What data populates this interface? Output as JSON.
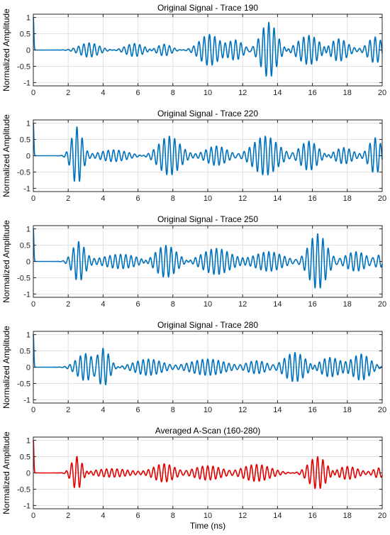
{
  "chart_data": [
    {
      "type": "line",
      "title": "Original Signal - Trace 190",
      "xlabel": "",
      "ylabel": "Normalized Amplitude",
      "xlim": [
        0,
        20
      ],
      "ylim": [
        -1.1,
        1.1
      ],
      "xticks": [
        0,
        2,
        4,
        6,
        8,
        10,
        12,
        14,
        16,
        18,
        20
      ],
      "yticks": [
        -1,
        -0.5,
        0,
        0.5,
        1
      ],
      "grid": true,
      "color": "#0072BD",
      "packets": [
        {
          "t": 0.0,
          "a": 1.0,
          "s": 0.03,
          "f": 0.0
        },
        {
          "t": 3.2,
          "a": 0.22,
          "s": 0.55,
          "f": 3.3
        },
        {
          "t": 5.8,
          "a": 0.2,
          "s": 0.5,
          "f": 3.3
        },
        {
          "t": 7.5,
          "a": 0.18,
          "s": 0.4,
          "f": 3.3
        },
        {
          "t": 10.1,
          "a": 0.48,
          "s": 0.55,
          "f": 3.3
        },
        {
          "t": 11.6,
          "a": 0.3,
          "s": 0.4,
          "f": 3.3
        },
        {
          "t": 13.5,
          "a": 0.85,
          "s": 0.45,
          "f": 3.3
        },
        {
          "t": 15.8,
          "a": 0.45,
          "s": 0.6,
          "f": 3.3
        },
        {
          "t": 17.5,
          "a": 0.35,
          "s": 0.5,
          "f": 3.3
        },
        {
          "t": 19.6,
          "a": 0.4,
          "s": 0.4,
          "f": 3.3
        }
      ]
    },
    {
      "type": "line",
      "title": "Original Signal - Trace 220",
      "xlabel": "",
      "ylabel": "Normalized Amplitude",
      "xlim": [
        0,
        20
      ],
      "ylim": [
        -1.1,
        1.1
      ],
      "xticks": [
        0,
        2,
        4,
        6,
        8,
        10,
        12,
        14,
        16,
        18,
        20
      ],
      "yticks": [
        -1,
        -0.5,
        0,
        0.5,
        1
      ],
      "grid": true,
      "color": "#0072BD",
      "packets": [
        {
          "t": 0.0,
          "a": 1.0,
          "s": 0.03,
          "f": 0.0
        },
        {
          "t": 2.5,
          "a": 0.88,
          "s": 0.3,
          "f": 3.3
        },
        {
          "t": 4.6,
          "a": 0.18,
          "s": 0.8,
          "f": 3.3
        },
        {
          "t": 7.8,
          "a": 0.6,
          "s": 0.6,
          "f": 3.3
        },
        {
          "t": 10.5,
          "a": 0.3,
          "s": 0.6,
          "f": 3.3
        },
        {
          "t": 13.3,
          "a": 0.6,
          "s": 0.7,
          "f": 3.3
        },
        {
          "t": 15.8,
          "a": 0.45,
          "s": 0.5,
          "f": 3.3
        },
        {
          "t": 17.8,
          "a": 0.25,
          "s": 0.5,
          "f": 3.3
        },
        {
          "t": 19.6,
          "a": 0.55,
          "s": 0.35,
          "f": 3.3
        }
      ]
    },
    {
      "type": "line",
      "title": "Original Signal - Trace 250",
      "xlabel": "",
      "ylabel": "Normalized Amplitude",
      "xlim": [
        0,
        20
      ],
      "ylim": [
        -1.1,
        1.1
      ],
      "xticks": [
        0,
        2,
        4,
        6,
        8,
        10,
        12,
        14,
        16,
        18,
        20
      ],
      "yticks": [
        -1,
        -0.5,
        0,
        0.5,
        1
      ],
      "grid": true,
      "color": "#0072BD",
      "packets": [
        {
          "t": 0.0,
          "a": 1.0,
          "s": 0.03,
          "f": 0.0
        },
        {
          "t": 2.6,
          "a": 0.6,
          "s": 0.35,
          "f": 3.3
        },
        {
          "t": 5.0,
          "a": 0.22,
          "s": 1.0,
          "f": 3.3
        },
        {
          "t": 7.6,
          "a": 0.5,
          "s": 0.6,
          "f": 3.3
        },
        {
          "t": 10.5,
          "a": 0.4,
          "s": 0.8,
          "f": 3.3
        },
        {
          "t": 13.5,
          "a": 0.3,
          "s": 0.8,
          "f": 3.3
        },
        {
          "t": 16.3,
          "a": 0.85,
          "s": 0.5,
          "f": 3.3
        },
        {
          "t": 18.5,
          "a": 0.3,
          "s": 0.6,
          "f": 3.3
        },
        {
          "t": 19.8,
          "a": 0.2,
          "s": 0.3,
          "f": 3.3
        }
      ]
    },
    {
      "type": "line",
      "title": "Original Signal - Trace 280",
      "xlabel": "",
      "ylabel": "Normalized Amplitude",
      "xlim": [
        0,
        20
      ],
      "ylim": [
        -1.1,
        1.1
      ],
      "xticks": [
        0,
        2,
        4,
        6,
        8,
        10,
        12,
        14,
        16,
        18,
        20
      ],
      "yticks": [
        -1,
        -0.5,
        0,
        0.5,
        1
      ],
      "grid": true,
      "color": "#0072BD",
      "packets": [
        {
          "t": 0.0,
          "a": 1.0,
          "s": 0.03,
          "f": 0.0
        },
        {
          "t": 3.0,
          "a": 0.42,
          "s": 0.5,
          "f": 3.3
        },
        {
          "t": 4.0,
          "a": 0.6,
          "s": 0.35,
          "f": 3.3
        },
        {
          "t": 6.6,
          "a": 0.25,
          "s": 0.8,
          "f": 3.3
        },
        {
          "t": 10.0,
          "a": 0.25,
          "s": 1.0,
          "f": 3.3
        },
        {
          "t": 12.8,
          "a": 0.2,
          "s": 0.6,
          "f": 3.3
        },
        {
          "t": 15.0,
          "a": 0.45,
          "s": 0.6,
          "f": 3.3
        },
        {
          "t": 17.0,
          "a": 0.3,
          "s": 0.6,
          "f": 3.3
        },
        {
          "t": 18.8,
          "a": 0.4,
          "s": 0.5,
          "f": 3.3
        }
      ]
    },
    {
      "type": "line",
      "title": "Averaged A-Scan (160-280)",
      "xlabel": "Time (ns)",
      "ylabel": "Normalized Amplitude",
      "xlim": [
        0,
        20
      ],
      "ylim": [
        -1.1,
        1.1
      ],
      "xticks": [
        0,
        2,
        4,
        6,
        8,
        10,
        12,
        14,
        16,
        18,
        20
      ],
      "yticks": [
        -1,
        -0.5,
        0,
        0.5,
        1
      ],
      "grid": true,
      "color": "#E30000",
      "packets": [
        {
          "t": 0.0,
          "a": 1.0,
          "s": 0.03,
          "f": 0.0
        },
        {
          "t": 2.5,
          "a": 0.52,
          "s": 0.3,
          "f": 3.3
        },
        {
          "t": 4.5,
          "a": 0.13,
          "s": 1.0,
          "f": 3.3
        },
        {
          "t": 7.5,
          "a": 0.28,
          "s": 0.6,
          "f": 3.3
        },
        {
          "t": 10.0,
          "a": 0.22,
          "s": 0.8,
          "f": 3.3
        },
        {
          "t": 12.8,
          "a": 0.26,
          "s": 0.8,
          "f": 3.3
        },
        {
          "t": 16.3,
          "a": 0.5,
          "s": 0.5,
          "f": 3.3
        },
        {
          "t": 18.0,
          "a": 0.2,
          "s": 0.6,
          "f": 3.3
        },
        {
          "t": 19.8,
          "a": 0.15,
          "s": 0.3,
          "f": 3.3
        }
      ]
    }
  ]
}
